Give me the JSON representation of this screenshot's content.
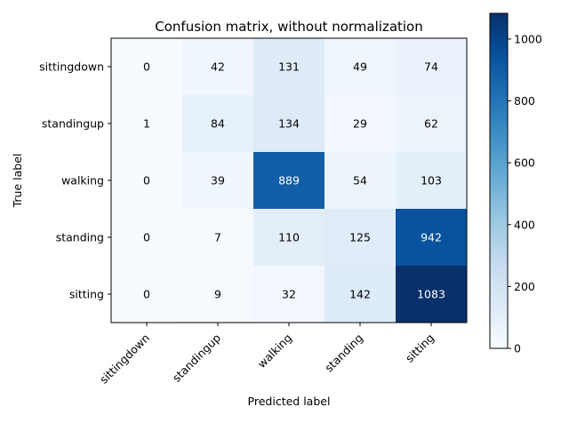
{
  "chart_data": {
    "type": "heatmap",
    "title": "Confusion matrix, without normalization",
    "xlabel": "Predicted label",
    "ylabel": "True label",
    "x_categories": [
      "sittingdown",
      "standingup",
      "walking",
      "standing",
      "sitting"
    ],
    "y_categories": [
      "sittingdown",
      "standingup",
      "walking",
      "standing",
      "sitting"
    ],
    "values": [
      [
        0,
        42,
        131,
        49,
        74
      ],
      [
        1,
        84,
        134,
        29,
        62
      ],
      [
        0,
        39,
        889,
        54,
        103
      ],
      [
        0,
        7,
        110,
        125,
        942
      ],
      [
        0,
        9,
        32,
        142,
        1083
      ]
    ],
    "colormap": "Blues",
    "color_min": "#f7fbff",
    "color_max": "#08306b",
    "colorbar_range": [
      0,
      1083
    ],
    "colorbar_ticks": [
      "0",
      "200",
      "400",
      "600",
      "800",
      "1000"
    ],
    "text_color_light": "#ffffff",
    "text_color_dark": "#000000"
  }
}
